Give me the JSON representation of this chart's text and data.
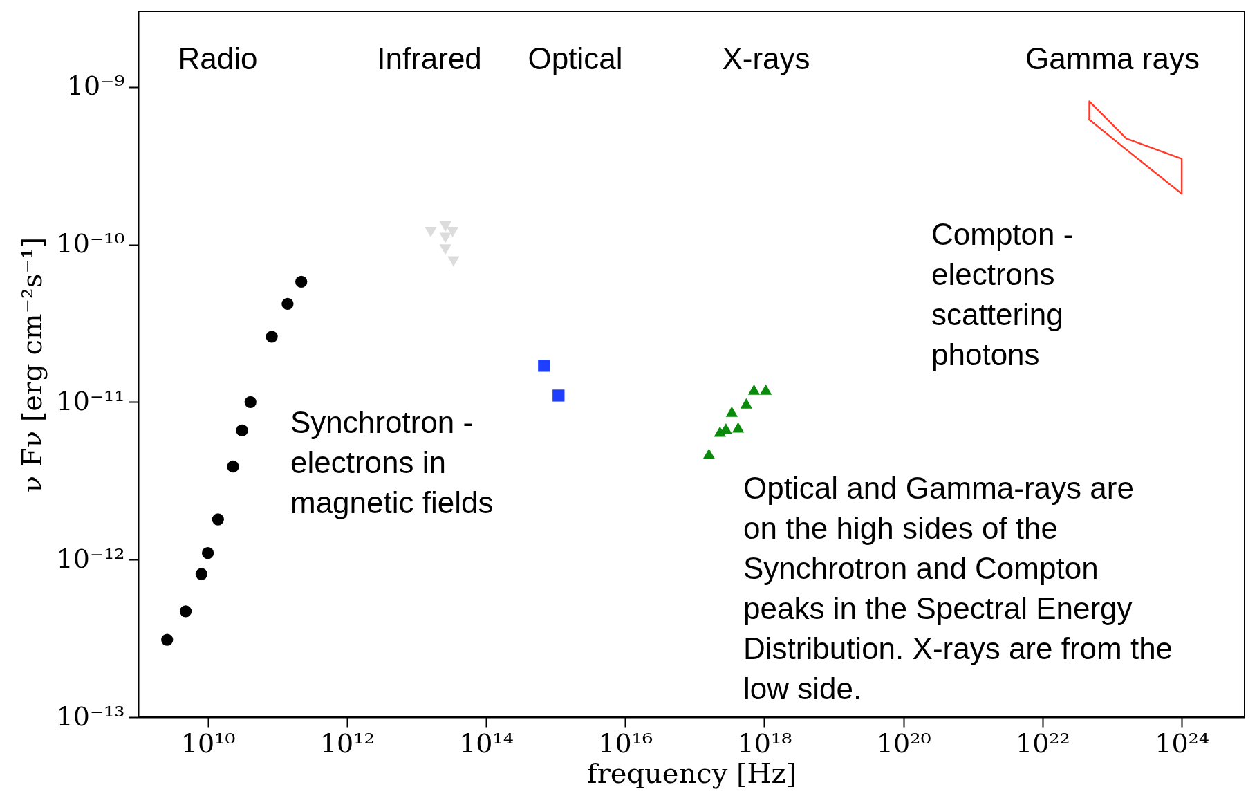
{
  "chart_data": {
    "type": "scatter",
    "xlabel": "frequency [Hz]",
    "ylabel": "ν Fν [erg cm⁻²s⁻¹]",
    "xlim": [
      1000000000.0,
      8e+24
    ],
    "ylim": [
      1e-13,
      3e-09
    ],
    "log": "xy",
    "grid": false,
    "xticks": [
      {
        "value": 10000000000.0,
        "label": "10¹⁰"
      },
      {
        "value": 1000000000000.0,
        "label": "10¹²"
      },
      {
        "value": 100000000000000.0,
        "label": "10¹⁴"
      },
      {
        "value": 1e+16,
        "label": "10¹⁶"
      },
      {
        "value": 1e+18,
        "label": "10¹⁸"
      },
      {
        "value": 1e+20,
        "label": "10²⁰"
      },
      {
        "value": 1e+22,
        "label": "10²²"
      },
      {
        "value": 1e+24,
        "label": "10²⁴"
      }
    ],
    "yticks": [
      {
        "value": 1e-13,
        "label": "10⁻¹³"
      },
      {
        "value": 1e-12,
        "label": "10⁻¹²"
      },
      {
        "value": 1e-11,
        "label": "10⁻¹¹"
      },
      {
        "value": 1e-10,
        "label": "10⁻¹⁰"
      },
      {
        "value": 1e-09,
        "label": "10⁻⁹"
      }
    ],
    "series": [
      {
        "type": "scatter",
        "marker": "circle",
        "color": "#000000",
        "x": [
          2600000000.0,
          4800000000.0,
          8100000000.0,
          10000000000.0,
          14000000000.0,
          23000000000.0,
          31000000000.0,
          41000000000.0,
          83000000000.0,
          140000000000.0,
          220000000000.0
        ],
        "values": [
          3.1e-13,
          4.7e-13,
          8.1e-13,
          1.1e-12,
          1.8e-12,
          3.9e-12,
          6.6e-12,
          1e-11,
          2.6e-11,
          4.2e-11,
          5.8e-11
        ]
      },
      {
        "type": "scatter",
        "marker": "triangle-down",
        "color": "#dcdcdc",
        "x": [
          16000000000000.0,
          26000000000000.0,
          26000000000000.0,
          33000000000000.0,
          26000000000000.0,
          34000000000000.0
        ],
        "values": [
          1.2e-10,
          1.3e-10,
          1.1e-10,
          1.2e-10,
          9.3e-11,
          7.8e-11
        ]
      },
      {
        "type": "scatter",
        "marker": "square",
        "color": "#1f3fff",
        "x": [
          680000000000000.0,
          1100000000000000.0
        ],
        "values": [
          1.7e-11,
          1.1e-11
        ]
      },
      {
        "type": "scatter",
        "marker": "triangle",
        "color": "#0a8a0a",
        "x": [
          1.6e+17,
          2.3e+17,
          2.8e+17,
          4.2e+17,
          3.4e+17,
          5.5e+17,
          7.1e+17,
          1.05e+18
        ],
        "values": [
          4.7e-12,
          6.5e-12,
          6.8e-12,
          6.9e-12,
          8.7e-12,
          9.8e-12,
          1.2e-11,
          1.2e-11
        ]
      },
      {
        "type": "line",
        "marker": "none",
        "line_style": "solid",
        "color": "#ff3b2b",
        "x": [
          4.7e+22,
          4.7e+22,
          1.6e+23,
          1e+24,
          1e+24
        ],
        "values": [
          6.2e-10,
          8.1e-10,
          4.7e-10,
          3.5e-10,
          2.1e-10
        ]
      },
      {
        "type": "line",
        "marker": "none",
        "line_style": "solid",
        "color": "#ff3b2b",
        "x": [
          4.7e+22,
          1.6e+23,
          1e+24
        ],
        "values": [
          6.2e-10,
          4e-10,
          2.1e-10
        ]
      }
    ],
    "annotations": [
      "Radio",
      "Infrared",
      "Optical",
      "X-rays",
      "Gamma rays",
      "Synchrotron -\nelectrons in\nmagnetic fields",
      "Compton -\nelectrons\nscattering\nphotons",
      "Optical and Gamma-rays are\non the high sides of the\nSynchrotron and Compton\npeaks in the Spectral Energy\nDistribution. X-rays are from the\nlow side."
    ]
  }
}
